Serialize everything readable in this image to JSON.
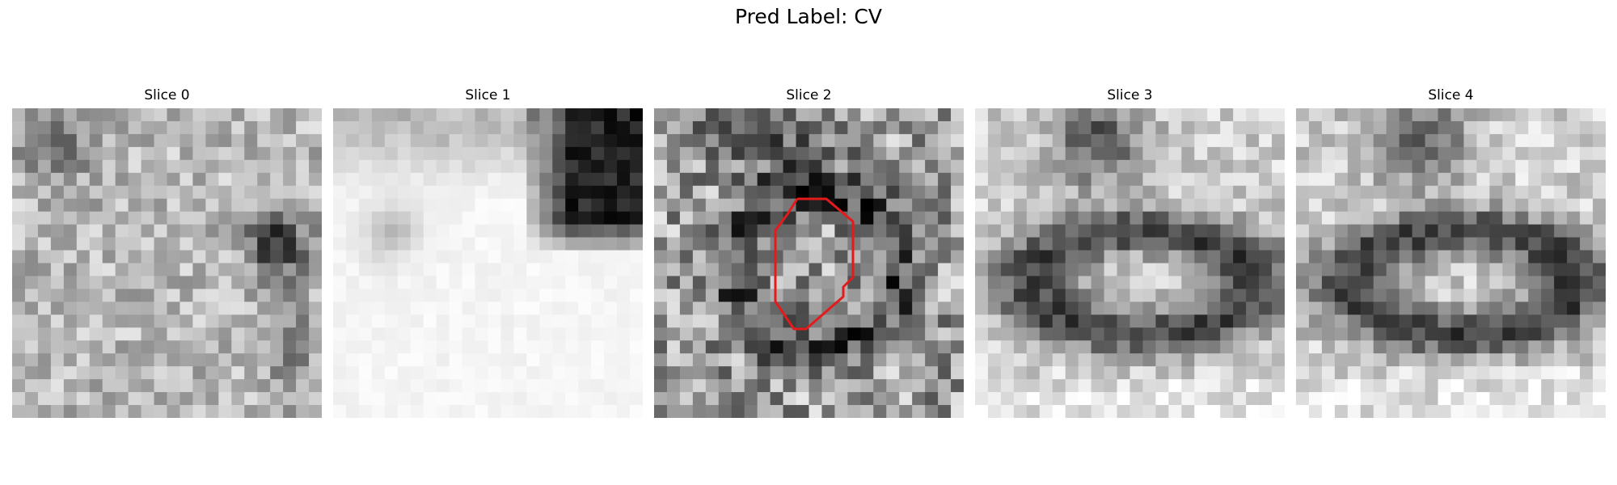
{
  "figure": {
    "title": "Pred Label: CV"
  },
  "slices": [
    {
      "title": "Slice 0",
      "style": "speckled light gray with dark blob on right",
      "overlay": false
    },
    {
      "title": "Slice 1",
      "style": "mostly white with dark region top-right",
      "overlay": false
    },
    {
      "title": "Slice 2",
      "style": "high-contrast speckle with dark ring",
      "overlay": true
    },
    {
      "title": "Slice 3",
      "style": "dark ring structure center",
      "overlay": false
    },
    {
      "title": "Slice 4",
      "style": "dark ring structure center",
      "overlay": false
    }
  ],
  "overlay": {
    "color": "#e41a1c",
    "shape": "polygon contour"
  }
}
